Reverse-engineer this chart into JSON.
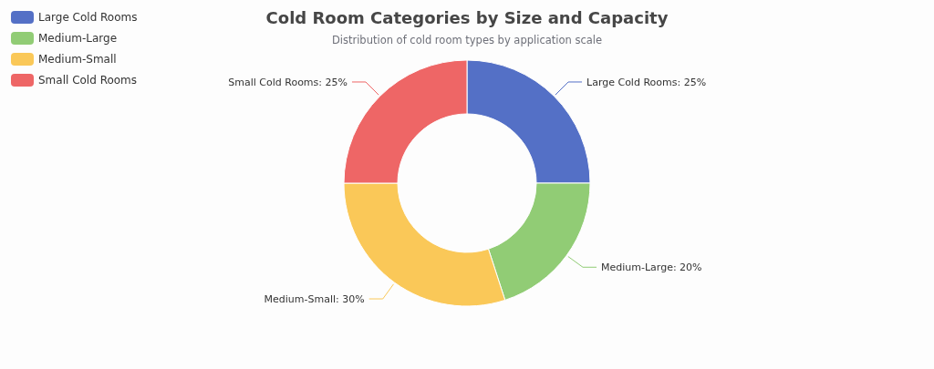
{
  "chart_data": {
    "type": "donut",
    "title": "Cold Room Categories by Size and Capacity",
    "subtitle": "Distribution of cold room types by application scale",
    "categories": [
      "Large Cold Rooms",
      "Medium-Large",
      "Medium-Small",
      "Small Cold Rooms"
    ],
    "values": [
      25,
      20,
      30,
      25
    ],
    "value_labels": [
      "Large Cold Rooms: 25%",
      "Medium-Large: 20%",
      "Medium-Small: 30%",
      "Small Cold Rooms: 25%"
    ],
    "colors": [
      "#5470c6",
      "#91cc75",
      "#fac858",
      "#ee6666"
    ],
    "legend": "top left"
  }
}
